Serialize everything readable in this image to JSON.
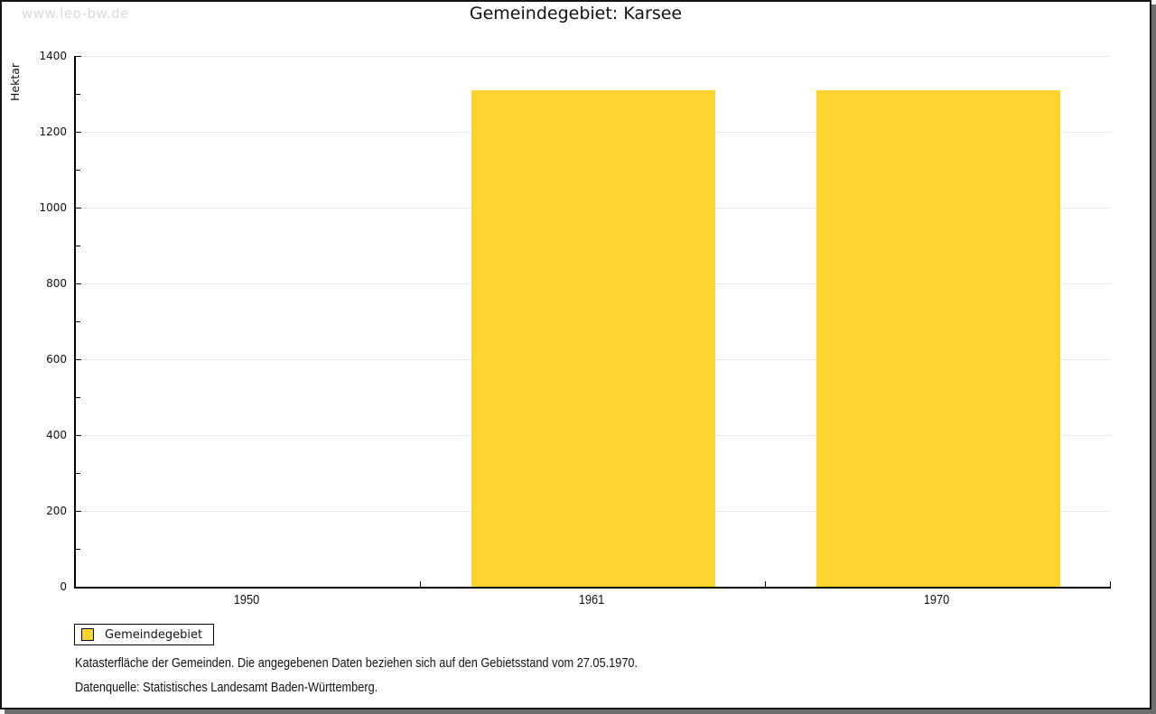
{
  "watermark": "www.leo-bw.de",
  "title": "Gemeindegebiet: Karsee",
  "chart_data": {
    "type": "bar",
    "title": "Gemeindegebiet: Karsee",
    "ylabel": "Hektar",
    "xlabel": "",
    "categories": [
      "1950",
      "1961",
      "1970"
    ],
    "series": [
      {
        "name": "Gemeindegebiet",
        "values": [
          null,
          1310,
          1310
        ],
        "color": "#fcd42d"
      }
    ],
    "ylim": [
      0,
      1400
    ],
    "ytick_step": 200,
    "y_minor_tick_step": 100,
    "grid": true,
    "legend_position": "bottom-left"
  },
  "legend": {
    "label": "Gemeindegebiet",
    "swatch_color": "#fcd42d"
  },
  "footnotes": {
    "line1": "Katasterfläche der Gemeinden. Die angegebenen Daten beziehen sich auf den Gebietsstand vom 27.05.1970.",
    "line2": "Datenquelle: Statistisches Landesamt Baden-Württemberg."
  },
  "colors": {
    "bar": "#fcd42d",
    "gridline": "#e9e9e9",
    "axis": "#000000",
    "watermark": "#d9d9d9",
    "frame_shadow": "#6e6e6e"
  }
}
